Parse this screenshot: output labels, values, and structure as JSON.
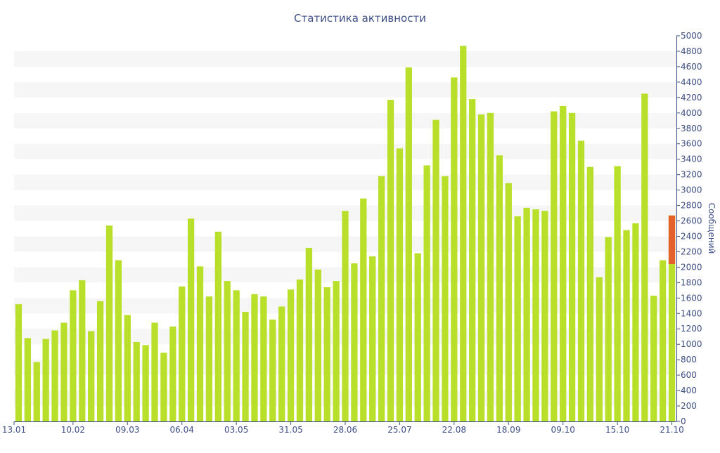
{
  "chart_data": {
    "type": "bar",
    "title": "Статистика активности",
    "xlabel": "",
    "ylabel": "Сообщений",
    "ylim": [
      0,
      5000
    ],
    "y_ticks": [
      0,
      200,
      400,
      600,
      800,
      1000,
      1200,
      1400,
      1600,
      1800,
      2000,
      2200,
      2400,
      2600,
      2800,
      3000,
      3200,
      3400,
      3600,
      3800,
      4000,
      4200,
      4400,
      4600,
      4800,
      5000
    ],
    "x_ticks": [
      {
        "index": 0,
        "label": "13.01"
      },
      {
        "index": 6,
        "label": "10.02"
      },
      {
        "index": 12,
        "label": "09.03"
      },
      {
        "index": 18,
        "label": "06.04"
      },
      {
        "index": 24,
        "label": "03.05"
      },
      {
        "index": 30,
        "label": "31.05"
      },
      {
        "index": 36,
        "label": "28.06"
      },
      {
        "index": 42,
        "label": "25.07"
      },
      {
        "index": 48,
        "label": "22.08"
      },
      {
        "index": 54,
        "label": "18.09"
      },
      {
        "index": 60,
        "label": "09.10"
      },
      {
        "index": 66,
        "label": "15.10"
      },
      {
        "index": 72,
        "label": "21.10"
      }
    ],
    "grid": "horizontal-bands",
    "colors": {
      "bar": "#b8e02a",
      "highlight": "#e4622a",
      "text": "#3e4f86",
      "band": "#f6f6f6"
    },
    "values": [
      1520,
      1080,
      770,
      1070,
      1180,
      1280,
      1700,
      1830,
      1170,
      1560,
      2540,
      2090,
      1380,
      1030,
      990,
      1280,
      890,
      1230,
      1750,
      2630,
      2010,
      1620,
      2460,
      1820,
      1700,
      1420,
      1650,
      1620,
      1320,
      1490,
      1710,
      1840,
      2250,
      1970,
      1740,
      1820,
      2730,
      2050,
      2890,
      2140,
      3180,
      4170,
      3540,
      4590,
      2180,
      3320,
      3910,
      3180,
      4460,
      4870,
      4180,
      3980,
      4000,
      3450,
      3090,
      2660,
      2770,
      2750,
      2730,
      4020,
      4090,
      4000,
      3640,
      3300,
      1870,
      2390,
      3310,
      2480,
      2570,
      4250,
      1630,
      2090,
      2670
    ],
    "highlight": {
      "index": 72,
      "from": 2040,
      "to": 2670
    }
  }
}
